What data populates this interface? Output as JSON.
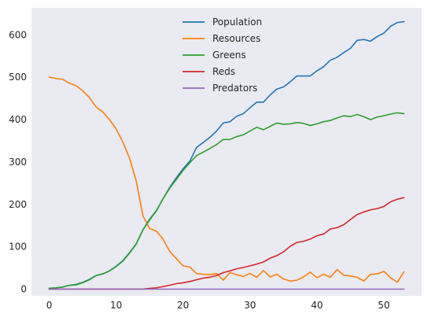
{
  "chart_data": {
    "type": "line",
    "title": "",
    "xlabel": "",
    "ylabel": "",
    "xlim": [
      -2.65,
      55.65
    ],
    "ylim": [
      -15.8,
      663.6
    ],
    "grid": false,
    "legend_position": "top-center",
    "background": "#eaeaf2",
    "x_ticks": [
      0,
      10,
      20,
      30,
      40,
      50
    ],
    "y_ticks": [
      0,
      100,
      200,
      300,
      400,
      500,
      600
    ],
    "x": [
      0,
      1,
      2,
      3,
      4,
      5,
      6,
      7,
      8,
      9,
      10,
      11,
      12,
      13,
      14,
      15,
      16,
      17,
      18,
      19,
      20,
      21,
      22,
      23,
      24,
      25,
      26,
      27,
      28,
      29,
      30,
      31,
      32,
      33,
      34,
      35,
      36,
      37,
      38,
      39,
      40,
      41,
      42,
      43,
      44,
      45,
      46,
      47,
      48,
      49,
      50,
      51,
      52,
      53
    ],
    "series": [
      {
        "name": "Population",
        "color": "#1f77b4",
        "values": [
          2,
          3,
          5,
          9,
          11,
          16,
          23,
          32,
          36,
          43,
          54,
          67,
          86,
          107,
          140,
          165,
          185,
          213,
          240,
          263,
          284,
          302,
          334,
          346,
          358,
          373,
          392,
          395,
          408,
          414,
          428,
          441,
          441,
          458,
          472,
          477,
          489,
          503,
          503,
          503,
          515,
          525,
          540,
          547,
          558,
          568,
          587,
          589,
          585,
          596,
          604,
          620,
          629,
          631
        ]
      },
      {
        "name": "Resources",
        "color": "#ff7f0e",
        "values": [
          500,
          497,
          495,
          486,
          480,
          468,
          452,
          430,
          418,
          400,
          378,
          347,
          309,
          255,
          173,
          143,
          137,
          118,
          89,
          72,
          55,
          52,
          37,
          35,
          34,
          37,
          21,
          39,
          34,
          30,
          37,
          28,
          44,
          29,
          35,
          24,
          19,
          21,
          29,
          40,
          27,
          35,
          28,
          46,
          33,
          31,
          28,
          19,
          35,
          36,
          42,
          27,
          16,
          41
        ]
      },
      {
        "name": "Greens",
        "color": "#2ca02c",
        "values": [
          2,
          3,
          5,
          9,
          10,
          15,
          22,
          32,
          36,
          43,
          53,
          66,
          85,
          106,
          140,
          163,
          184,
          213,
          238,
          259,
          280,
          298,
          315,
          323,
          332,
          341,
          353,
          353,
          360,
          364,
          373,
          382,
          376,
          384,
          392,
          389,
          390,
          393,
          391,
          386,
          390,
          395,
          398,
          404,
          409,
          407,
          412,
          407,
          400,
          406,
          409,
          413,
          416,
          414
        ]
      },
      {
        "name": "Reds",
        "color": "#d62728",
        "values": [
          0,
          0,
          0,
          0,
          0,
          0,
          0,
          0,
          0,
          0,
          0,
          0,
          0,
          0,
          0,
          2,
          3,
          6,
          9,
          13,
          15,
          18,
          22,
          26,
          28,
          32,
          39,
          43,
          48,
          51,
          55,
          59,
          64,
          73,
          79,
          88,
          101,
          110,
          113,
          118,
          126,
          130,
          142,
          145,
          152,
          164,
          176,
          182,
          187,
          190,
          195,
          206,
          212,
          216
        ]
      },
      {
        "name": "Predators",
        "color": "#9467bd",
        "values": [
          0,
          0,
          0,
          0,
          0,
          0,
          0,
          0,
          0,
          0,
          0,
          0,
          0,
          0,
          0,
          0,
          0,
          0,
          0,
          0,
          0,
          0,
          0,
          0,
          0,
          0,
          0,
          0,
          0,
          0,
          0,
          0,
          0,
          0,
          0,
          0,
          0,
          0,
          0,
          0,
          0,
          0,
          0,
          0,
          0,
          0,
          0,
          0,
          0,
          0,
          0,
          0,
          0,
          0
        ]
      }
    ]
  }
}
